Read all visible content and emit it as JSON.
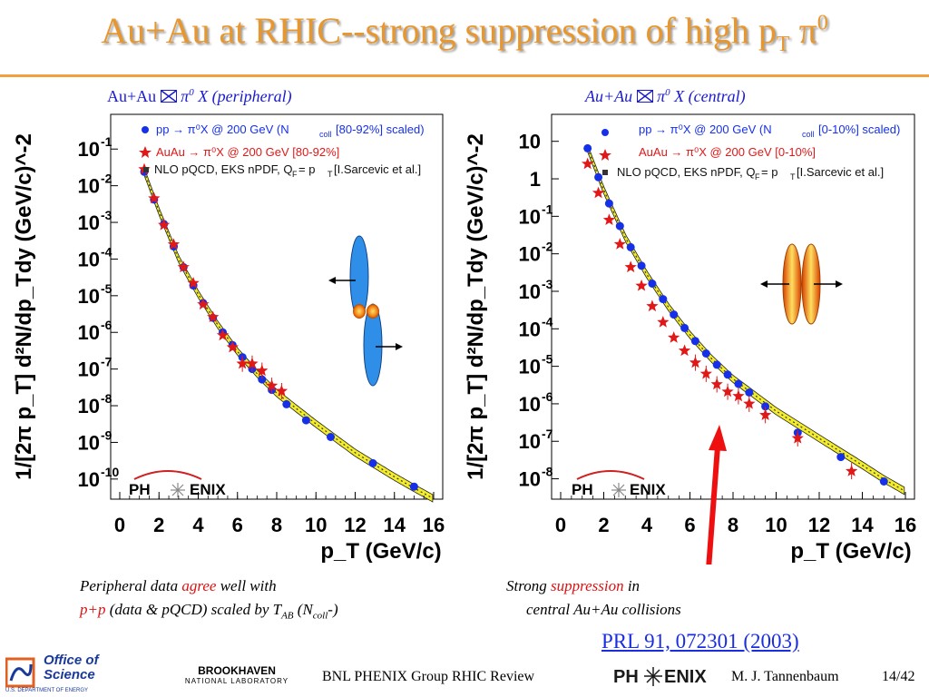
{
  "slide": {
    "title": "Au+Au at RHIC--strong suppression of high p",
    "title_sub": "T",
    "title_pi": "π",
    "title_sup": "0",
    "left_header_a": "Au+Au",
    "left_header_b": "π",
    "left_header_c": "0",
    "left_header_d": " X (peripheral)",
    "right_header_a": "Au+Au",
    "right_header_b": "π",
    "right_header_c": "0",
    "right_header_d": " X (central)",
    "caption_left_1a": "Peripheral data ",
    "caption_left_1b": "agree",
    "caption_left_1c": " well with",
    "caption_left_2a": "p+p",
    "caption_left_2b": " (data & pQCD) scaled by T",
    "caption_left_2c": "AB",
    "caption_left_2d": " (N",
    "caption_left_2e": "coll",
    "caption_left_2f": "-)",
    "caption_right_1a": "Strong ",
    "caption_right_1b": "suppression",
    "caption_right_1c": " in",
    "caption_right_2": "central Au+Au collisions",
    "reference": "PRL 91, 072301 (2003)",
    "footer_center": "BNL PHENIX Group  RHIC Review",
    "footer_author": "M. J. Tannenbaum",
    "footer_page": "14/42",
    "logo_office_1": "Office of",
    "logo_office_2": "Science",
    "logo_office_3": "U.S. DEPARTMENT OF ENERGY",
    "logo_bnl_1": "BROOKHAVEN",
    "logo_bnl_2": "NATIONAL LABORATORY",
    "logo_phenix_a": "PH",
    "logo_phenix_b": "ENIX"
  },
  "colors": {
    "title": "#e8972e",
    "pp_points": "#1530e8",
    "auau_points": "#e01818",
    "pqcd_band": "#f3ec2a",
    "arrow": "#ee1010",
    "link": "#1a2ee0"
  },
  "chart_data": [
    {
      "type": "scatter",
      "panel": "peripheral",
      "ylabel": "1/[2π p_T] d²N/dp_Tdy (GeV/c)^-2",
      "xlabel": "p_T (GeV/c)",
      "xlim": [
        0,
        16
      ],
      "ylim": [
        5e-11,
        0.5
      ],
      "y_log": true,
      "x_ticks": [
        "0",
        "2",
        "4",
        "6",
        "8",
        "10",
        "12",
        "14",
        "16"
      ],
      "y_tick_exponents": [
        "-1",
        "-2",
        "-3",
        "-4",
        "-5",
        "-6",
        "-7",
        "-8",
        "-9",
        "-10"
      ],
      "legend": [
        {
          "text": "pp → π⁰X @ 200 GeV (N",
          "sub": "coll",
          "text2": "[80-92%] scaled)",
          "marker": "circle"
        },
        {
          "text": "AuAu → π⁰X @ 200 GeV [80-92%]",
          "marker": "star"
        },
        {
          "text": "NLO pQCD, EKS nPDF, Q",
          "sub": "F",
          "text2": " = p",
          "sub2": "T",
          "text3": " [I.Sarcevic et al.]",
          "marker": "square"
        }
      ],
      "series": [
        {
          "name": "pp → π⁰X @ 200 GeV (N_coll[80-92%] scaled)",
          "x": [
            1.25,
            1.75,
            2.25,
            2.75,
            3.25,
            3.75,
            4.25,
            4.75,
            5.25,
            5.75,
            6.25,
            6.75,
            7.25,
            7.75,
            8.5,
            9.5,
            10.75,
            12.9,
            15.0
          ],
          "y": [
            0.024,
            0.0042,
            0.0009,
            0.00022,
            6e-05,
            1.9e-05,
            6.3e-06,
            2.5e-06,
            1e-06,
            4.5e-07,
            2.1e-07,
            1e-07,
            5.2e-08,
            2.7e-08,
            1.1e-08,
            4e-09,
            1.4e-09,
            2.7e-10,
            6.2e-11
          ]
        },
        {
          "name": "AuAu → π⁰X @ 200 GeV [80-92%]",
          "x": [
            1.25,
            1.75,
            2.25,
            2.75,
            3.25,
            3.75,
            4.25,
            4.75,
            5.25,
            5.75,
            6.25,
            6.75,
            7.25,
            7.75,
            8.25
          ],
          "y": [
            0.028,
            0.0045,
            0.00085,
            0.00025,
            6e-05,
            2.2e-05,
            5.8e-06,
            2.6e-06,
            8.3e-07,
            3.9e-07,
            1.4e-07,
            1.4e-07,
            9e-08,
            3.5e-08,
            2.5e-08
          ]
        },
        {
          "name": "NLO pQCD, EKS nPDF, Q_F = p_T [I.Sarcevic et al.]",
          "x": [
            1.25,
            2.0,
            3.0,
            4.0,
            5.0,
            6.0,
            7.0,
            8.0,
            10.0,
            12.0,
            14.0,
            15.0,
            16.0
          ],
          "y": [
            0.024,
            0.002,
            0.0001,
            1.1e-05,
            1.6e-06,
            3e-07,
            7.5e-08,
            2.2e-08,
            3.2e-09,
            5.2e-10,
            1.15e-10,
            5.7e-11,
            2.9e-11
          ]
        }
      ]
    },
    {
      "type": "scatter",
      "panel": "central",
      "ylabel": "1/[2π p_T] d²N/dp_Tdy (GeV/c)^-2",
      "xlabel": "p_T (GeV/c)",
      "xlim": [
        0,
        16
      ],
      "ylim": [
        5e-09,
        30
      ],
      "y_log": true,
      "x_ticks": [
        "0",
        "2",
        "4",
        "6",
        "8",
        "10",
        "12",
        "14",
        "16"
      ],
      "y_tick_labels": [
        {
          "base": "10",
          "exp": ""
        },
        {
          "base": "1",
          "exp": ""
        },
        {
          "base": "10",
          "exp": "-1"
        },
        {
          "base": "10",
          "exp": "-2"
        },
        {
          "base": "10",
          "exp": "-3"
        },
        {
          "base": "10",
          "exp": "-4"
        },
        {
          "base": "10",
          "exp": "-5"
        },
        {
          "base": "10",
          "exp": "-6"
        },
        {
          "base": "10",
          "exp": "-7"
        },
        {
          "base": "10",
          "exp": "-8"
        }
      ],
      "legend": [
        {
          "text": "pp → π⁰X @ 200 GeV (N",
          "sub": "coll",
          "text2": "[0-10%] scaled)",
          "marker": "circle"
        },
        {
          "text": "AuAu → π⁰X @ 200 GeV [0-10%]",
          "marker": "star"
        },
        {
          "text": "NLO pQCD, EKS nPDF, Q",
          "sub": "F",
          "text2": " = p",
          "sub2": "T",
          "text3": " [I.Sarcevic et al.]",
          "marker": "square"
        }
      ],
      "series": [
        {
          "name": "pp → π⁰X @ 200 GeV (N_coll[0-10%] scaled)",
          "x": [
            1.25,
            1.75,
            2.25,
            2.75,
            3.25,
            3.75,
            4.25,
            4.75,
            5.25,
            5.75,
            6.25,
            6.75,
            7.25,
            7.75,
            8.25,
            8.75,
            9.5,
            11.0,
            13.0,
            15.0
          ],
          "y": [
            6.5,
            1.1,
            0.22,
            0.055,
            0.015,
            0.0048,
            0.0016,
            0.00062,
            0.00024,
            0.000105,
            4.7e-05,
            2.2e-05,
            1.1e-05,
            6e-06,
            3.4e-06,
            2e-06,
            8.5e-07,
            1.7e-07,
            3.8e-08,
            8.5e-09
          ]
        },
        {
          "name": "AuAu → π⁰X @ 200 GeV [0-10%]",
          "x": [
            1.25,
            1.75,
            2.25,
            2.75,
            3.25,
            3.75,
            4.25,
            4.75,
            5.25,
            5.75,
            6.25,
            6.75,
            7.25,
            7.75,
            8.25,
            8.75,
            9.5,
            11.0,
            13.5
          ],
          "y": [
            2.5,
            0.42,
            0.08,
            0.018,
            0.0044,
            0.0014,
            0.0004,
            0.00015,
            5.8e-05,
            2.6e-05,
            1.25e-05,
            6.3e-06,
            3.3e-06,
            2.1e-06,
            1.6e-06,
            1e-06,
            5e-07,
            1.2e-07,
            1.6e-08
          ]
        },
        {
          "name": "NLO pQCD, EKS nPDF, Q_F = p_T [I.Sarcevic et al.]",
          "x": [
            1.25,
            2.0,
            3.0,
            4.0,
            5.0,
            6.0,
            7.0,
            8.0,
            10.0,
            12.0,
            14.0,
            15.0,
            16.0
          ],
          "y": [
            6.5,
            0.5,
            0.027,
            0.0028,
            0.00038,
            6.9e-05,
            1.6e-05,
            4.6e-06,
            6.4e-07,
            1.2e-07,
            2.3e-08,
            9.8e-09,
            4.6e-09
          ]
        }
      ]
    }
  ]
}
